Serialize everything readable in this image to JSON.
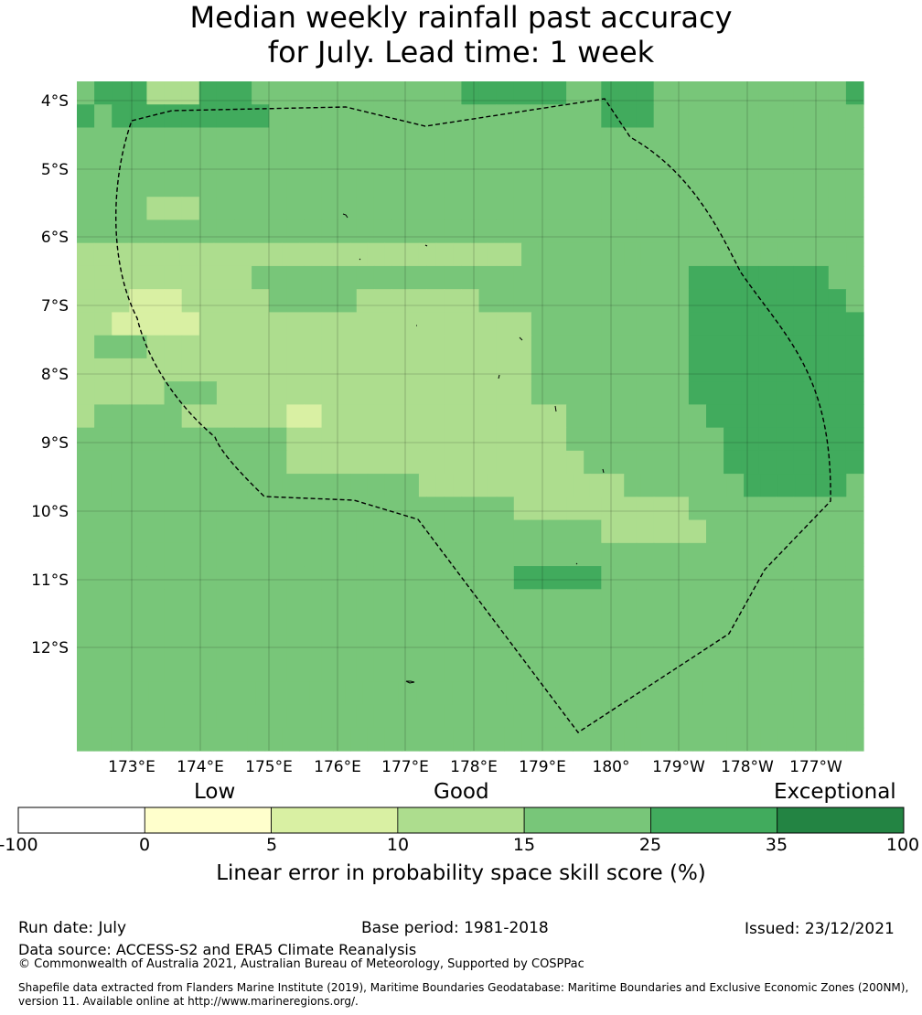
{
  "title": {
    "line1": "Median weekly rainfall past accuracy",
    "line2": "for July. Lead time: 1 week"
  },
  "map": {
    "lat_labels": [
      "4°S",
      "5°S",
      "6°S",
      "7°S",
      "8°S",
      "9°S",
      "10°S",
      "11°S",
      "12°S"
    ],
    "lon_labels": [
      "173°E",
      "174°E",
      "175°E",
      "176°E",
      "177°E",
      "178°E",
      "179°E",
      "180°",
      "179°W",
      "178°W",
      "177°W"
    ],
    "grid_colors": {
      "c": "#78c679",
      "l": "#addd8e",
      "p": "#d9f0a3",
      "d": "#41ab5d"
    },
    "cells": [
      "cdddllldddccccccccccccddddddccdddcccccccccccd",
      "dcdddddddddcccccccccccccccccccdddcccccccccccc",
      "ccccccccccccccccccccccccccccccccccccccccccccc",
      "ccccccccccccccccccccccccccccccccccccccccccccc",
      "ccccccccccccccccccccccccccccccccccccccccccccc",
      "cccclllcccccccccccccccccccccccccccccccccccccc",
      "ccccccccccccccccccccccccccccccccccccccccccccc",
      "llllllllllllllllllllllllllcccccccccccccccccccc",
      "llllllllllcccccccccccccccccccccccccddddddddcc",
      "lllppplllllccccclllllllccccccccccccdddddddddc",
      "llppppplllllllllllllllllllcccccccccdddddddddd",
      "lcccllllllllllllllllllllllcccccccccdddddddddd",
      "llllllllllllllllllllllllllcccccccccdddddddddd",
      "lllllcccllllllllllllllllllcccccccccdddddddddd",
      "lcccccllllllppllllllllllllllccccccccddddddddd",
      "ccccccccccccllllllllllllllllcccccccccdddddddd",
      "cccccccccccclllllllllllllllllccccccccdddddddd",
      "ccccccccccccccccccccllllllllllllcccccccddddddc",
      "cccccccccccccccccccccccccllllllllllcccccccccc",
      "ccccccccccccccccccccccccccccccllllllccccccccc",
      "ccccccccccccccccccccccccccccccccccccccccccccc",
      "cccccccccccccccccccccccccdddddccccccccccccccc",
      "ccccccccccccccccccccccccccccccccccccccccccccc",
      "ccccccccccccccccccccccccccccccccccccccccccccc",
      "ccccccccccccccccccccccccccccccccccccccccccccc",
      "ccccccccccccccccccccccccccccccccccccccccccccc",
      "cccccccccccccccccccccccccccccccccccccccccccc",
      "ccccccccccccccccccccccccccccccccccccccccccccc",
      "cccccccccccccccccccccccccccccccccccccccccccccc"
    ]
  },
  "legend": {
    "categories": [
      "Low",
      "Good",
      "Exceptional"
    ],
    "ticks": [
      "-100",
      "0",
      "5",
      "10",
      "15",
      "25",
      "35",
      "100"
    ],
    "colors": [
      "#ffffff",
      "#ffffcc",
      "#d9f0a3",
      "#addd8e",
      "#78c679",
      "#41ab5d",
      "#238443"
    ],
    "title": "Linear error in probability space skill score (%)"
  },
  "footer": {
    "run_date": "Run date: July",
    "base_period": "Base period: 1981-2018",
    "issued": "Issued: 23/12/2021",
    "data_source": "Data source: ACCESS-S2 and ERA5 Climate Reanalysis",
    "copyright": "© Commonwealth of Australia 2021, Australian Bureau of Meteorology, Supported by COSPPac",
    "shapefile": "Shapefile data extracted from Flanders Marine Institute (2019), Maritime Boundaries Geodatabase: Maritime Boundaries and Exclusive Economic Zones (200NM), version 11. Available online at http://www.marineregions.org/."
  }
}
